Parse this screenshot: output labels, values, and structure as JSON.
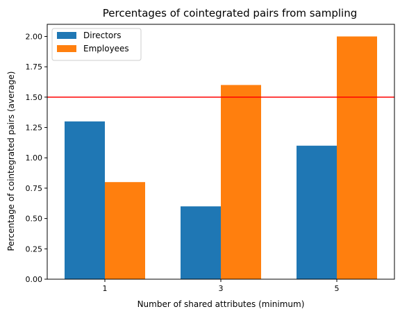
{
  "chart_data": {
    "type": "bar",
    "title": "Percentages of cointegrated pairs from sampling",
    "xlabel": "Number of shared attributes (minimum)",
    "ylabel": "Percentage of cointegrated pairs (average)",
    "categories": [
      "1",
      "3",
      "5"
    ],
    "series": [
      {
        "name": "Directors",
        "values": [
          1.3,
          0.6,
          1.1
        ],
        "color": "#1f77b4"
      },
      {
        "name": "Employees",
        "values": [
          0.8,
          1.6,
          2.0
        ],
        "color": "#ff7f0e"
      }
    ],
    "ylim": [
      0,
      2.1
    ],
    "yticks": [
      "0.00",
      "0.25",
      "0.50",
      "0.75",
      "1.00",
      "1.25",
      "1.50",
      "1.75",
      "2.00"
    ],
    "reference_line": {
      "y": 1.5,
      "color": "#ff0000"
    },
    "legend_position": "top-left",
    "grid": false
  }
}
